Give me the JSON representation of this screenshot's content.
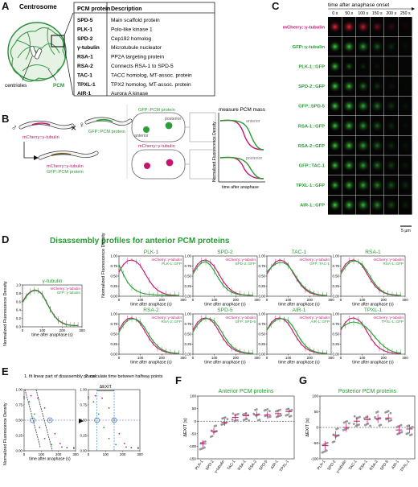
{
  "panels": {
    "A": "A",
    "B": "B",
    "C": "C",
    "D": "D",
    "E": "E",
    "F": "F",
    "G": "G"
  },
  "panel_a": {
    "title": "Centrosome",
    "label_centrioles": "centrioles",
    "label_pcm": "PCM",
    "table_header_protein": "PCM protein",
    "table_header_desc": "Description",
    "rows": [
      {
        "protein": "SPD-5",
        "desc": "Main scaffold protein"
      },
      {
        "protein": "PLK-1",
        "desc": "Polo-like kinase 1"
      },
      {
        "protein": "SPD-2",
        "desc": "Cep192 homolog"
      },
      {
        "protein": "γ-tubulin",
        "desc": "Microtubule nucleator"
      },
      {
        "protein": "RSA-1",
        "desc": "PP2A targeting protein"
      },
      {
        "protein": "RSA-2",
        "desc": "Connects RSA-1 to SPD-5"
      },
      {
        "protein": "TAC-1",
        "desc": "TACC homolog, MT-assoc. protein"
      },
      {
        "protein": "TPXL-1",
        "desc": "TPX2 homolog, MT-assoc. protein"
      },
      {
        "protein": "AIR-1",
        "desc": "Aurora A kinase"
      }
    ]
  },
  "panel_b": {
    "male": "♂",
    "herm": "♀",
    "cross": "×",
    "worm1": "mCherry::γ-tubulin",
    "worm2": "GFP::PCM protein",
    "worm3a": "mCherry::γ-tubulin",
    "worm3b": "GFP::PCM protein",
    "embryo_top": "GFP::PCM protein",
    "embryo_bottom": "mCherry::γ-tubulin",
    "posterior": "posterior",
    "anterior": "anterior",
    "measure": "measure PCM mass",
    "ylabel": "Normalized Fluorescence Density",
    "xlabel": "time after anaphase",
    "curve_top": "anterior",
    "curve_bottom": "posterior"
  },
  "panel_c": {
    "header": "time after anaphase onset",
    "times": [
      "0 s",
      "50 s",
      "100 s",
      "150 s",
      "200 s",
      "250 s"
    ],
    "rows": [
      {
        "label": "mCherry::γ-tubulin",
        "color": "#c4166f"
      },
      {
        "label": "GFP::γ-tubulin",
        "color": "#249c2f"
      },
      {
        "label": "PLK-1::GFP",
        "color": "#249c2f"
      },
      {
        "label": "SPD-2::GFP",
        "color": "#249c2f"
      },
      {
        "label": "GFP::SPD-5",
        "color": "#249c2f"
      },
      {
        "label": "RSA-1::GFP",
        "color": "#249c2f"
      },
      {
        "label": "RSA-2::GFP",
        "color": "#249c2f"
      },
      {
        "label": "GFP::TAC-1",
        "color": "#249c2f"
      },
      {
        "label": "TPXL-1::GFP",
        "color": "#249c2f"
      },
      {
        "label": "AIR-1::GFP",
        "color": "#249c2f"
      }
    ],
    "scale": "5 µm"
  },
  "panel_d": {
    "title": "Disassembly profiles for anterior PCM proteins",
    "ylabel_single": "Normalized Fluorescence Density",
    "ylabel_grid": "Normalized Fluorescence Density",
    "xlabel": "time after anaphase (s)",
    "yticks": [
      "0.00",
      "0.25",
      "0.50",
      "0.75",
      "1.00"
    ],
    "yticks_single": [
      "0.0",
      "0.2",
      "0.4",
      "0.6",
      "0.8",
      "1.0"
    ],
    "xticks": [
      "0",
      "100",
      "200",
      "300"
    ]
  },
  "chart_data": [
    {
      "type": "line",
      "title": "γ-tubulin",
      "xlabel": "time after anaphase (s)",
      "ylabel": "Normalized Fluorescence Density",
      "xlim": [
        0,
        300
      ],
      "ylim": [
        0,
        1.0
      ],
      "series": [
        {
          "name": "mCherry::γ-tubulin",
          "x": [
            0,
            20,
            40,
            60,
            80,
            100,
            120,
            140,
            160,
            180,
            200,
            220,
            240,
            260,
            280
          ],
          "y": [
            0.6,
            0.75,
            0.84,
            0.88,
            0.86,
            0.78,
            0.6,
            0.42,
            0.27,
            0.16,
            0.1,
            0.06,
            0.04,
            0.03,
            0.03
          ]
        },
        {
          "name": "GFP::γ-tubulin",
          "x": [
            0,
            20,
            40,
            60,
            80,
            100,
            120,
            140,
            160,
            180,
            200,
            220,
            240,
            260,
            280
          ],
          "y": [
            0.58,
            0.73,
            0.83,
            0.87,
            0.85,
            0.77,
            0.59,
            0.41,
            0.26,
            0.15,
            0.09,
            0.05,
            0.04,
            0.03,
            0.03
          ]
        }
      ]
    },
    {
      "type": "line",
      "title": "PLK-1",
      "xlabel": "time after anaphase (s)",
      "ylabel": "",
      "xlim": [
        0,
        300
      ],
      "ylim": [
        0,
        1.0
      ],
      "series": [
        {
          "name": "mCherry::γ-tubulin",
          "x": [
            0,
            20,
            40,
            60,
            80,
            100,
            120,
            140,
            160,
            180,
            200,
            220,
            240,
            260,
            280
          ],
          "y": [
            0.6,
            0.78,
            0.88,
            0.9,
            0.86,
            0.76,
            0.58,
            0.4,
            0.25,
            0.15,
            0.09,
            0.05,
            0.03,
            0.03,
            0.02
          ]
        },
        {
          "name": "PLK-1::GFP",
          "x": [
            0,
            20,
            40,
            60,
            80,
            100,
            120,
            140,
            160,
            180,
            200,
            220,
            240,
            260,
            280
          ],
          "y": [
            0.78,
            0.55,
            0.35,
            0.22,
            0.14,
            0.09,
            0.06,
            0.05,
            0.04,
            0.03,
            0.03,
            0.02,
            0.02,
            0.02,
            0.02
          ]
        }
      ]
    },
    {
      "type": "line",
      "title": "SPD-2",
      "xlabel": "time after anaphase (s)",
      "ylabel": "",
      "xlim": [
        0,
        300
      ],
      "ylim": [
        0,
        1.0
      ],
      "series": [
        {
          "name": "mCherry::γ-tubulin",
          "x": [
            0,
            20,
            40,
            60,
            80,
            100,
            120,
            140,
            160,
            180,
            200,
            220,
            240,
            260,
            280
          ],
          "y": [
            0.6,
            0.78,
            0.88,
            0.9,
            0.85,
            0.74,
            0.56,
            0.38,
            0.24,
            0.14,
            0.08,
            0.05,
            0.03,
            0.03,
            0.02
          ]
        },
        {
          "name": "SPD-2::GFP",
          "x": [
            0,
            20,
            40,
            60,
            80,
            100,
            120,
            140,
            160,
            180,
            200,
            220,
            240,
            260,
            280
          ],
          "y": [
            0.55,
            0.72,
            0.83,
            0.86,
            0.78,
            0.62,
            0.44,
            0.28,
            0.17,
            0.1,
            0.06,
            0.04,
            0.03,
            0.02,
            0.02
          ]
        }
      ]
    },
    {
      "type": "line",
      "title": "TAC-1",
      "xlabel": "time after anaphase (s)",
      "ylabel": "",
      "xlim": [
        0,
        300
      ],
      "ylim": [
        0,
        1.0
      ],
      "series": [
        {
          "name": "mCherry::γ-tubulin",
          "x": [
            0,
            20,
            40,
            60,
            80,
            100,
            120,
            140,
            160,
            180,
            200,
            220,
            240,
            260,
            280
          ],
          "y": [
            0.55,
            0.72,
            0.85,
            0.9,
            0.87,
            0.78,
            0.6,
            0.42,
            0.27,
            0.16,
            0.09,
            0.05,
            0.03,
            0.02,
            0.02
          ]
        },
        {
          "name": "GFP::TAC-1",
          "x": [
            0,
            20,
            40,
            60,
            80,
            100,
            120,
            140,
            160,
            180,
            200,
            220,
            240,
            260,
            280
          ],
          "y": [
            0.6,
            0.72,
            0.8,
            0.84,
            0.83,
            0.76,
            0.62,
            0.45,
            0.3,
            0.19,
            0.12,
            0.07,
            0.04,
            0.03,
            0.02
          ]
        }
      ]
    },
    {
      "type": "line",
      "title": "RSA-1",
      "xlabel": "time after anaphase (s)",
      "ylabel": "",
      "xlim": [
        0,
        300
      ],
      "ylim": [
        0,
        1.0
      ],
      "series": [
        {
          "name": "mCherry::γ-tubulin",
          "x": [
            0,
            20,
            40,
            60,
            80,
            100,
            120,
            140,
            160,
            180,
            200,
            220,
            240,
            260,
            280
          ],
          "y": [
            0.6,
            0.78,
            0.88,
            0.9,
            0.86,
            0.76,
            0.58,
            0.4,
            0.25,
            0.15,
            0.09,
            0.05,
            0.03,
            0.02,
            0.02
          ]
        },
        {
          "name": "RSA-1::GFP",
          "x": [
            0,
            20,
            40,
            60,
            80,
            100,
            120,
            140,
            160,
            180,
            200,
            220,
            240,
            260,
            280
          ],
          "y": [
            0.55,
            0.72,
            0.84,
            0.88,
            0.86,
            0.79,
            0.64,
            0.46,
            0.3,
            0.18,
            0.1,
            0.06,
            0.04,
            0.03,
            0.02
          ]
        }
      ]
    },
    {
      "type": "line",
      "title": "RSA-2",
      "xlabel": "time after anaphase (s)",
      "ylabel": "",
      "xlim": [
        0,
        300
      ],
      "ylim": [
        0,
        1.0
      ],
      "series": [
        {
          "name": "mCherry::γ-tubulin",
          "x": [
            0,
            20,
            40,
            60,
            80,
            100,
            120,
            140,
            160,
            180,
            200,
            220,
            240,
            260,
            280
          ],
          "y": [
            0.6,
            0.78,
            0.88,
            0.9,
            0.86,
            0.76,
            0.58,
            0.4,
            0.25,
            0.15,
            0.09,
            0.05,
            0.03,
            0.02,
            0.02
          ]
        },
        {
          "name": "RSA-2::GFP",
          "x": [
            0,
            20,
            40,
            60,
            80,
            100,
            120,
            140,
            160,
            180,
            200,
            220,
            240,
            260,
            280
          ],
          "y": [
            0.55,
            0.72,
            0.84,
            0.88,
            0.87,
            0.8,
            0.66,
            0.48,
            0.32,
            0.2,
            0.12,
            0.07,
            0.04,
            0.03,
            0.02
          ]
        }
      ]
    },
    {
      "type": "line",
      "title": "SPD-5",
      "xlabel": "time after anaphase (s)",
      "ylabel": "",
      "xlim": [
        0,
        300
      ],
      "ylim": [
        0,
        1.0
      ],
      "series": [
        {
          "name": "mCherry::γ-tubulin",
          "x": [
            0,
            20,
            40,
            60,
            80,
            100,
            120,
            140,
            160,
            180,
            200,
            220,
            240,
            260,
            280
          ],
          "y": [
            0.6,
            0.78,
            0.88,
            0.9,
            0.86,
            0.76,
            0.58,
            0.4,
            0.25,
            0.15,
            0.09,
            0.05,
            0.03,
            0.02,
            0.02
          ]
        },
        {
          "name": "GFP::SPD-5",
          "x": [
            0,
            20,
            40,
            60,
            80,
            100,
            120,
            140,
            160,
            180,
            200,
            220,
            240,
            260,
            280
          ],
          "y": [
            0.55,
            0.72,
            0.84,
            0.89,
            0.88,
            0.82,
            0.68,
            0.5,
            0.33,
            0.2,
            0.12,
            0.07,
            0.04,
            0.03,
            0.02
          ]
        }
      ]
    },
    {
      "type": "line",
      "title": "AIR-1",
      "xlabel": "time after anaphase (s)",
      "ylabel": "",
      "xlim": [
        0,
        300
      ],
      "ylim": [
        0,
        1.0
      ],
      "series": [
        {
          "name": "mCherry::γ-tubulin",
          "x": [
            0,
            20,
            40,
            60,
            80,
            100,
            120,
            140,
            160,
            180,
            200,
            220,
            240,
            260,
            280
          ],
          "y": [
            0.6,
            0.78,
            0.88,
            0.9,
            0.86,
            0.76,
            0.58,
            0.4,
            0.25,
            0.15,
            0.09,
            0.05,
            0.03,
            0.02,
            0.02
          ]
        },
        {
          "name": "AIR-1::GFP",
          "x": [
            0,
            20,
            40,
            60,
            80,
            100,
            120,
            140,
            160,
            180,
            200,
            220,
            240,
            260,
            280
          ],
          "y": [
            0.6,
            0.74,
            0.84,
            0.88,
            0.88,
            0.83,
            0.7,
            0.52,
            0.34,
            0.21,
            0.12,
            0.07,
            0.04,
            0.03,
            0.02
          ]
        }
      ]
    },
    {
      "type": "line",
      "title": "TPXL-1",
      "xlabel": "time after anaphase (s)",
      "ylabel": "",
      "xlim": [
        0,
        300
      ],
      "ylim": [
        0,
        1.0
      ],
      "series": [
        {
          "name": "mCherry::γ-tubulin",
          "x": [
            0,
            20,
            40,
            60,
            80,
            100,
            120,
            140,
            160,
            180,
            200,
            220,
            240,
            260,
            280
          ],
          "y": [
            0.6,
            0.78,
            0.88,
            0.9,
            0.86,
            0.76,
            0.58,
            0.4,
            0.25,
            0.15,
            0.09,
            0.05,
            0.03,
            0.02,
            0.02
          ]
        },
        {
          "name": "TPXL-1::GFP",
          "x": [
            0,
            20,
            40,
            60,
            80,
            100,
            120,
            140,
            160,
            180,
            200,
            220,
            240,
            260,
            280
          ],
          "y": [
            0.65,
            0.72,
            0.78,
            0.8,
            0.78,
            0.74,
            0.66,
            0.55,
            0.42,
            0.3,
            0.2,
            0.12,
            0.07,
            0.04,
            0.03
          ]
        }
      ]
    },
    {
      "type": "scatter",
      "title": "Anterior PCM proteins",
      "ylabel": "ΔEXIT (s)",
      "ylim": [
        -150,
        100
      ],
      "categories": [
        "PLK-1",
        "SPD-2",
        "γ-tubulin",
        "TAC-1",
        "RSA-1",
        "RSA-2",
        "SPD-5",
        "AIR-1",
        "TPXL-1"
      ],
      "values": [
        -90,
        -40,
        -5,
        15,
        22,
        25,
        25,
        30,
        38
      ]
    },
    {
      "type": "scatter",
      "title": "Posterior PCM proteins",
      "ylabel": "ΔEXIT (s)",
      "ylim": [
        -100,
        100
      ],
      "categories": [
        "PLK-1",
        "SPD-2",
        "γ-tubulin",
        "TAC-1",
        "RSA-1",
        "RSA-2",
        "SPD-5",
        "AIR-1",
        "TPXL-1"
      ],
      "values": [
        -58,
        -25,
        0,
        20,
        25,
        28,
        30,
        -8,
        -5
      ]
    }
  ],
  "panel_e": {
    "step1": "1. fit linear part of disassembly phase",
    "step2": "2. calculate time between halfway points",
    "delta": "ΔEXIT",
    "ylabel": "Normalized Fluorescence Density",
    "xlabel": "time after anaphase (s)",
    "yticks": [
      "0.00",
      "0.25",
      "0.50",
      "0.75",
      "1.00"
    ],
    "xticks": [
      "0",
      "100",
      "200",
      "300"
    ]
  },
  "panel_f": {
    "title": "Anterior PCM proteins",
    "ylabel": "ΔEXIT (s)",
    "yticks": [
      "-150",
      "-100",
      "-50",
      "0",
      "50",
      "100"
    ]
  },
  "panel_g": {
    "title": "Posterior PCM proteins",
    "ylabel": "ΔEXIT (s)",
    "yticks": [
      "-100",
      "-50",
      "0",
      "50",
      "100"
    ]
  }
}
